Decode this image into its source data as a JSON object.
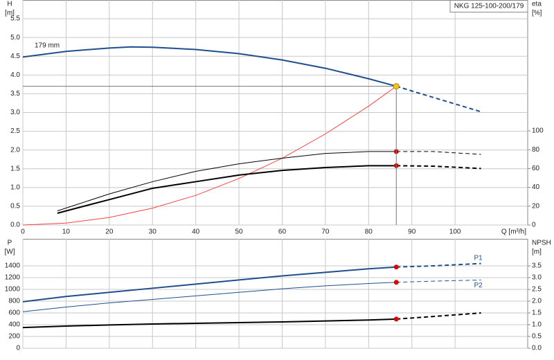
{
  "chart_data": [
    {
      "type": "line",
      "title": "NKG 125-100-200/179",
      "annotation": "179 mm",
      "ylabel": "H",
      "yunit": "[m]",
      "y2label": "eta",
      "y2unit": "[%]",
      "xlabel": "Q [m³/h]",
      "xlim": [
        0,
        116.8
      ],
      "xticks": [
        0,
        10,
        20,
        30,
        40,
        50,
        60,
        70,
        80,
        90,
        100
      ],
      "ylim": [
        0,
        6
      ],
      "yticks": [
        {
          "value": 0,
          "label": "0.0"
        },
        0.5,
        {
          "value": 1,
          "label": "1.0"
        },
        1.5,
        {
          "value": 2,
          "label": "2.0"
        },
        2.5,
        {
          "value": 3,
          "label": "3.0"
        },
        3.5,
        {
          "value": 4,
          "label": "4.0"
        },
        4.5,
        {
          "value": 5,
          "label": "5.0"
        },
        5.5
      ],
      "y2lim": [
        0,
        239
      ],
      "y2ticks": [
        0,
        20,
        40,
        60,
        80,
        100
      ],
      "grid": true,
      "duty_point": {
        "x": 86.4,
        "y": 3.7
      },
      "series": [
        {
          "color": "#1f4e8c",
          "width": 2,
          "x": [
            0,
            10,
            20,
            25,
            30,
            40,
            50,
            60,
            70,
            80,
            86.4,
            95,
            106
          ],
          "values": [
            4.48,
            4.63,
            4.72,
            4.75,
            4.74,
            4.68,
            4.57,
            4.4,
            4.18,
            3.9,
            3.7,
            3.4,
            3.02
          ]
        },
        {
          "color": "#ff4040",
          "width": 1,
          "x": [
            0,
            10,
            20,
            30,
            40,
            50,
            60,
            70,
            80,
            86.4
          ],
          "values": [
            0,
            0.05,
            0.2,
            0.45,
            0.79,
            1.24,
            1.78,
            2.43,
            3.17,
            3.7
          ]
        },
        {
          "color": "#000000",
          "width": 1,
          "axis": "y2",
          "x": [
            8,
            10,
            20,
            30,
            40,
            50,
            60,
            70,
            80,
            86.4,
            95,
            106
          ],
          "values": [
            15,
            18,
            33,
            46,
            57,
            65,
            71,
            76,
            78,
            78,
            78,
            75
          ]
        },
        {
          "color": "#000000",
          "width": 2,
          "axis": "y2",
          "x": [
            8,
            10,
            20,
            30,
            40,
            50,
            60,
            70,
            80,
            86.4,
            95,
            106
          ],
          "values": [
            12.5,
            15,
            27,
            39,
            46,
            53,
            58,
            61,
            63,
            63,
            62.5,
            60
          ]
        }
      ]
    },
    {
      "type": "line",
      "ylabel": "P",
      "yunit": "[W]",
      "y2label": "NPSH",
      "y2unit": "[m]",
      "xlim": [
        0,
        116.8
      ],
      "ylim": [
        0,
        1859
      ],
      "yticks": [
        0,
        200,
        400,
        600,
        800,
        1000,
        1200,
        1400
      ],
      "y2lim": [
        0,
        4.65
      ],
      "y2ticks": [
        {
          "value": 0,
          "label": "0.0"
        },
        0.5,
        {
          "value": 1,
          "label": "1.0"
        },
        1.5,
        {
          "value": 2,
          "label": "2.0"
        },
        2.5,
        {
          "value": 3,
          "label": "3.0"
        },
        3.5
      ],
      "grid": true,
      "series": [
        {
          "name": "P1",
          "color": "#1f4e8c",
          "width": 2,
          "x": [
            0,
            10,
            20,
            30,
            40,
            50,
            60,
            70,
            80,
            86.4,
            95,
            106
          ],
          "values": [
            790,
            880,
            950,
            1020,
            1090,
            1160,
            1230,
            1290,
            1350,
            1380,
            1400,
            1440
          ]
        },
        {
          "name": "P2",
          "color": "#1f4e8c",
          "width": 1,
          "x": [
            0,
            10,
            20,
            30,
            40,
            50,
            60,
            70,
            80,
            86.4,
            95,
            106
          ],
          "values": [
            620,
            700,
            770,
            830,
            890,
            950,
            1010,
            1060,
            1100,
            1120,
            1140,
            1160
          ]
        },
        {
          "color": "#000000",
          "width": 2,
          "axis": "y2",
          "x": [
            0,
            10,
            20,
            30,
            40,
            50,
            60,
            70,
            80,
            86.4,
            95,
            106
          ],
          "values": [
            0.88,
            0.94,
            0.99,
            1.03,
            1.06,
            1.09,
            1.12,
            1.16,
            1.2,
            1.24,
            1.35,
            1.5
          ]
        }
      ]
    }
  ]
}
